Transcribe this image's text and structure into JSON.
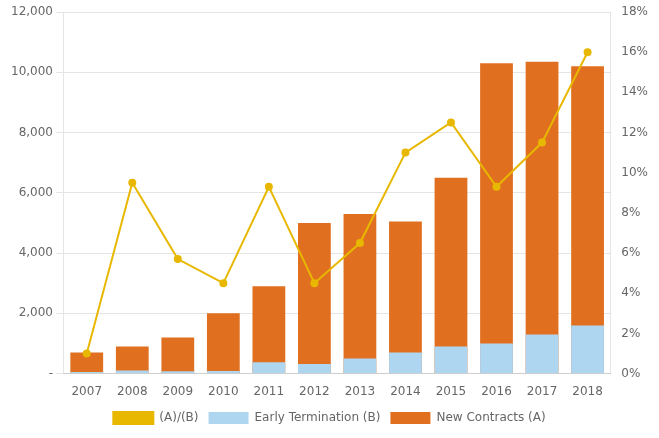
{
  "chart_data": {
    "type": "bar",
    "categories": [
      "2007",
      "2008",
      "2009",
      "2010",
      "2011",
      "2012",
      "2013",
      "2014",
      "2015",
      "2016",
      "2017",
      "2018"
    ],
    "series": [
      {
        "name": "New Contracts (A)",
        "color": "#E07020",
        "type": "bar",
        "values": [
          700,
          900,
          1200,
          2000,
          2900,
          5000,
          5300,
          5050,
          6500,
          10300,
          10350,
          10200
        ]
      },
      {
        "name": "Early Termination (B)",
        "color": "#AED6F1",
        "type": "bar",
        "values": [
          50,
          100,
          80,
          90,
          380,
          320,
          500,
          700,
          900,
          1000,
          1300,
          1600
        ]
      },
      {
        "name": "(A)/(B)",
        "color": "#E8B800",
        "type": "line",
        "axis": "y2",
        "marker": "circle",
        "values": [
          0.01,
          0.095,
          0.057,
          0.045,
          0.093,
          0.045,
          0.065,
          0.11,
          0.125,
          0.093,
          0.115,
          0.16
        ]
      }
    ],
    "ylim": [
      0,
      12000
    ],
    "yticks": [
      {
        "value": 0,
        "label": "-"
      },
      {
        "value": 2000,
        "label": "2,000"
      },
      {
        "value": 4000,
        "label": "4,000"
      },
      {
        "value": 6000,
        "label": "6,000"
      },
      {
        "value": 8000,
        "label": "8,000"
      },
      {
        "value": 10000,
        "label": "10,000"
      },
      {
        "value": 12000,
        "label": "12,000"
      }
    ],
    "y2lim": [
      0,
      0.18
    ],
    "y2ticks": [
      {
        "value": 0.0,
        "label": "0%"
      },
      {
        "value": 0.02,
        "label": "2%"
      },
      {
        "value": 0.04,
        "label": "4%"
      },
      {
        "value": 0.06,
        "label": "6%"
      },
      {
        "value": 0.08,
        "label": "8%"
      },
      {
        "value": 0.1,
        "label": "10%"
      },
      {
        "value": 0.12,
        "label": "12%"
      },
      {
        "value": 0.14,
        "label": "14%"
      },
      {
        "value": 0.16,
        "label": "16%"
      },
      {
        "value": 0.18,
        "label": "18%"
      }
    ],
    "grid": true,
    "legend": "bottom"
  }
}
